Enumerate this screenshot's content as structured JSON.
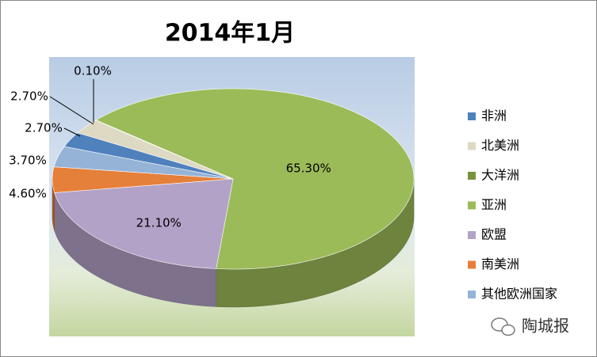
{
  "chart_data": {
    "type": "pie3d",
    "title": "2014年1月",
    "series": [
      {
        "name": "非洲",
        "color": "#4f81bd",
        "values": [
          2.7
        ],
        "value_labels": [
          "2.70%"
        ]
      },
      {
        "name": "北美洲",
        "color": "#ddd9c3",
        "values": [
          2.7
        ],
        "value_labels": [
          "2.70%"
        ]
      },
      {
        "name": "大洋洲",
        "color": "#77933c",
        "values": [
          0.1
        ],
        "value_labels": [
          "0.10%"
        ]
      },
      {
        "name": "亚洲",
        "color": "#9bbb59",
        "values": [
          65.3
        ],
        "value_labels": [
          "65.30%"
        ]
      },
      {
        "name": "欧盟",
        "color": "#b3a2c7",
        "values": [
          21.1
        ],
        "value_labels": [
          "21.10%"
        ]
      },
      {
        "name": "南美洲",
        "color": "#e5803a",
        "values": [
          4.6
        ],
        "value_labels": [
          "4.60%"
        ]
      },
      {
        "name": "其他欧洲国家",
        "color": "#95b3d7",
        "values": [
          3.7
        ],
        "value_labels": [
          "3.70%"
        ]
      }
    ]
  },
  "watermark": "陶城报"
}
